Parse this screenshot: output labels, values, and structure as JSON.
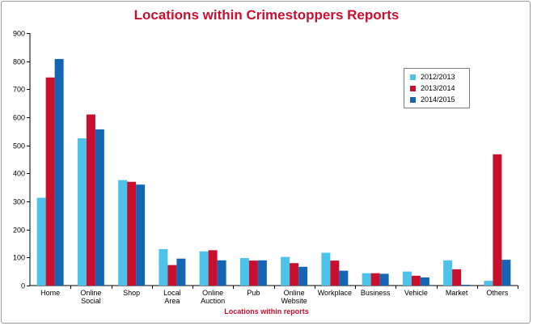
{
  "chart_data": {
    "type": "bar",
    "title": "Locations within Crimestoppers Reports",
    "xlabel": "Locations within reports",
    "ylabel": "",
    "ylim": [
      0,
      900
    ],
    "yticks": [
      0,
      100,
      200,
      300,
      400,
      500,
      600,
      700,
      800,
      900
    ],
    "grid": false,
    "legend_position": "top-right",
    "categories": [
      [
        "Home"
      ],
      [
        "Online",
        "Social"
      ],
      [
        "Shop"
      ],
      [
        "Local",
        "Area"
      ],
      [
        "Online",
        "Auction"
      ],
      [
        "Pub"
      ],
      [
        "Online",
        "Website"
      ],
      [
        "Workplace"
      ],
      [
        "Business"
      ],
      [
        "Vehicle"
      ],
      [
        "Market"
      ],
      [
        "Others"
      ]
    ],
    "series": [
      {
        "name": "2012/2013",
        "color": "#4dc3ec",
        "values": [
          313,
          525,
          376,
          130,
          122,
          98,
          102,
          117,
          44,
          50,
          90,
          17
        ]
      },
      {
        "name": "2013/2014",
        "color": "#c8102e",
        "values": [
          742,
          610,
          370,
          73,
          126,
          89,
          80,
          89,
          44,
          35,
          58,
          468
        ]
      },
      {
        "name": "2014/2015",
        "color": "#1565b5",
        "values": [
          808,
          557,
          360,
          96,
          90,
          90,
          67,
          53,
          42,
          29,
          3,
          92
        ]
      }
    ]
  }
}
